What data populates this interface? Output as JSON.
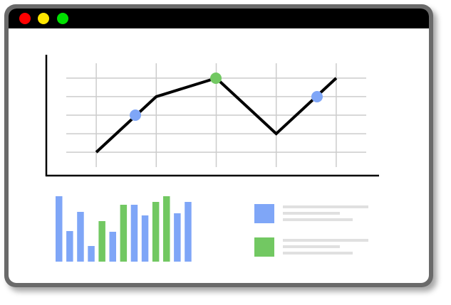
{
  "chart_data": [
    {
      "type": "line",
      "x": [
        0,
        1,
        2,
        3,
        4
      ],
      "series": [
        {
          "color": "#000000",
          "values": [
            0,
            3,
            4,
            1,
            4
          ]
        }
      ],
      "xlim": [
        -0.5,
        4.5
      ],
      "xticks": [
        0,
        1,
        2,
        3,
        4
      ],
      "ylim": [
        -0.8,
        4.8
      ],
      "yticks": [
        0,
        1,
        2,
        3,
        4
      ],
      "grid": true
    },
    {
      "type": "bar",
      "values": [
        92,
        43,
        70,
        22,
        57,
        42,
        80,
        80,
        65,
        84,
        92,
        68,
        84
      ],
      "colors": [
        "#7fa6f7",
        "#7fa6f7",
        "#7fa6f7",
        "#7fa6f7",
        "#72c862",
        "#7fa6f7",
        "#72c862",
        "#7fa6f7",
        "#7fa6f7",
        "#72c862",
        "#72c862",
        "#7fa6f7",
        "#7fa6f7"
      ],
      "ylim": [
        0,
        100
      ]
    }
  ]
}
